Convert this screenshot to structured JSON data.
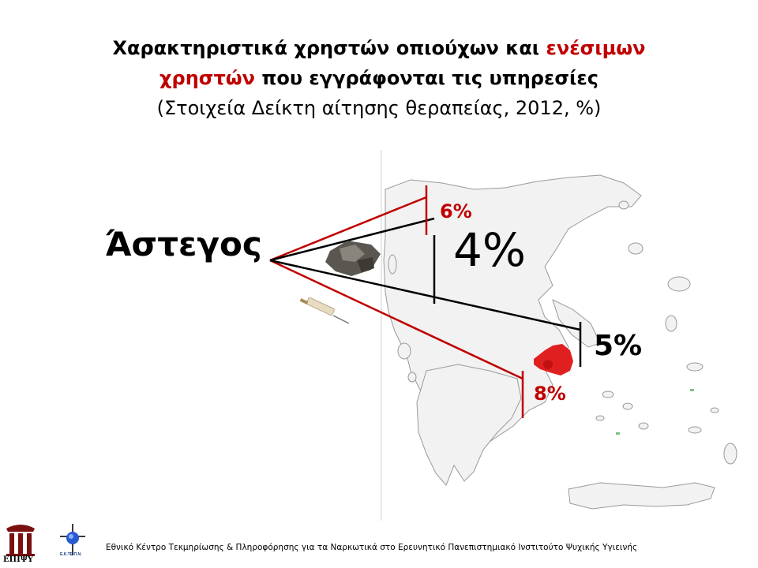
{
  "title": {
    "line1_black": "Χαρακτηριστικά χρηστών οπιούχων και ",
    "line1_red": "ενέσιμων",
    "line2_red": "χρηστών",
    "line2_black": " που εγγράφονται τις υπηρεσίες",
    "line3": "(Στοιχεία Δείκτη αίτησης θεραπείας, 2012, %)"
  },
  "label": "Άστεγος",
  "percentages": {
    "injectors_top": "6%",
    "opioid_top": "4%",
    "opioid_bottom": "5%",
    "injectors_bottom": "8%"
  },
  "footer": "Εθνικό Κέντρο Τεκμηρίωσης & Πληροφόρησης για τα Ναρκωτικά στο Ερευνητικό Πανεπιστημιακό Ινστιτούτο Ψυχικής Υγιεινής",
  "logos": {
    "left_text": "ΕΠΙΨΥ",
    "right_text": "Ε.Κ.ΤΕ.Π.Ν."
  },
  "colors": {
    "red": "#c00000",
    "black": "#000000",
    "map_fill": "#f2f2f2",
    "map_stroke": "#9a9a9a",
    "blob": "#e02020"
  }
}
